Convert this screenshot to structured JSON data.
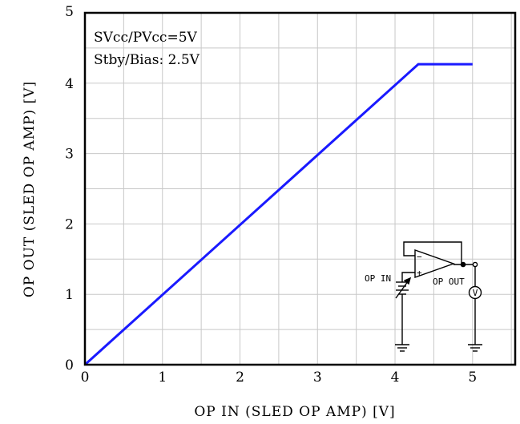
{
  "chart_data": {
    "type": "line",
    "title": "",
    "xlabel": "OP IN (SLED OP AMP) [V]",
    "ylabel": "OP OUT (SLED OP AMP) [V]",
    "xlim": [
      0,
      5.55
    ],
    "ylim": [
      0,
      5
    ],
    "x_ticks": [
      "0",
      "1",
      "2",
      "3",
      "4",
      "5"
    ],
    "y_ticks": [
      "0",
      "1",
      "2",
      "3",
      "4",
      "5"
    ],
    "grid": true,
    "series": [
      {
        "color": "#1a1aff",
        "x": [
          0,
          4.3,
          5.0
        ],
        "y": [
          0,
          4.27,
          4.27
        ]
      }
    ],
    "annotations": [
      "SVcc/PVcc=5V",
      "Stby/Bias: 2.5V"
    ]
  },
  "inset": {
    "op_in_label": "OP IN",
    "op_out_label": "OP OUT",
    "meter_label": "V",
    "minus_sign": "−",
    "plus_sign": "+"
  }
}
